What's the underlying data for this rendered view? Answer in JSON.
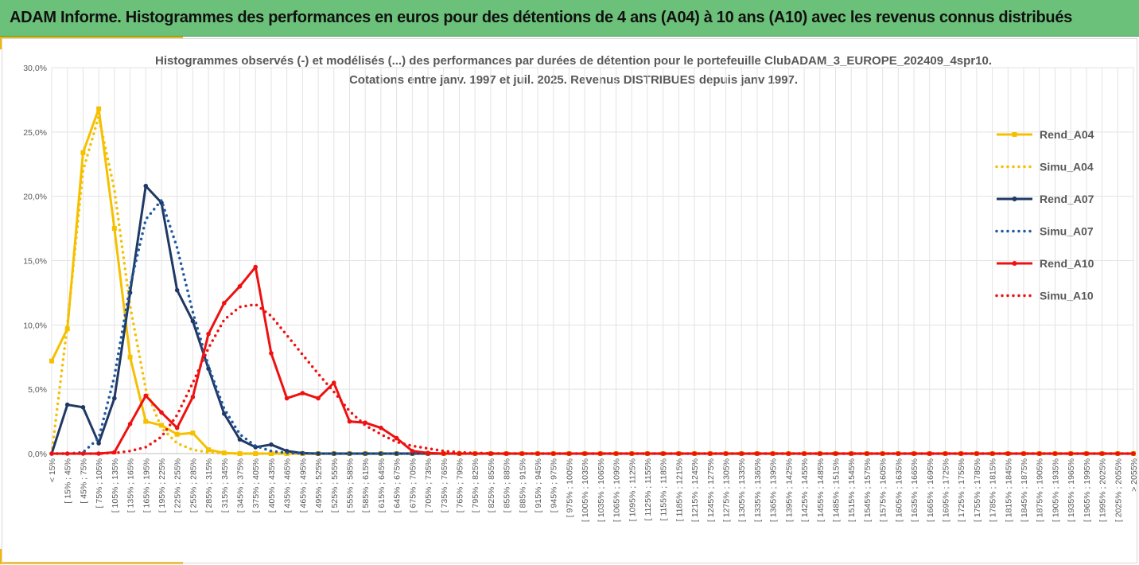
{
  "banner": {
    "title": "ADAM Informe. Histogrammes des performances en euros pour des détentions de 4 ans (A04) à 10 ans (A10) avec les revenus connus distribués"
  },
  "colors": {
    "banner_bg": "#6cc17a",
    "accent": "#f2b705",
    "a04": "#f5c000",
    "a07": "#1f3864",
    "a10": "#ee1111"
  },
  "chart_data": {
    "type": "line",
    "title": "Histogrammes observés (-) et modélisés (...) des performances par durées de détention pour le portefeuille ClubADAM_3_EUROPE_202409_4spr10.",
    "subtitle": "Cotations entre janv. 1997 et juil. 2025. Revenus DISTRIBUES depuis janv 1997.",
    "ylim": [
      0,
      0.3
    ],
    "yticks": [
      "0,0%",
      "5,0%",
      "10,0%",
      "15,0%",
      "20,0%",
      "25,0%",
      "30,0%"
    ],
    "grid": true,
    "legend_position": "right",
    "categories": [
      "< 15%",
      "[ 15% ; 45%",
      "[ 45% ; 75%",
      "[ 75% ; 105%",
      "[ 105% ; 135%",
      "[ 135% ; 165%",
      "[ 165% ; 195%",
      "[ 195% ; 225%",
      "[ 225% ; 255%",
      "[ 255% ; 285%",
      "[ 285% ; 315%",
      "[ 315% ; 345%",
      "[ 345% ; 375%",
      "[ 375% ; 405%",
      "[ 405% ; 435%",
      "[ 435% ; 465%",
      "[ 465% ; 495%",
      "[ 495% ; 525%",
      "[ 525% ; 555%",
      "[ 555% ; 585%",
      "[ 585% ; 615%",
      "[ 615% ; 645%",
      "[ 645% ; 675%",
      "[ 675% ; 705%",
      "[ 705% ; 735%",
      "[ 735% ; 765%",
      "[ 765% ; 795%",
      "[ 795% ; 825%",
      "[ 825% ; 855%",
      "[ 855% ; 885%",
      "[ 885% ; 915%",
      "[ 915% ; 945%",
      "[ 945% ; 975%",
      "[ 975% ; 1005%",
      "[ 1005% ; 1035%",
      "[ 1035% ; 1065%",
      "[ 1065% ; 1095%",
      "[ 1095% ; 1125%",
      "[ 1125% ; 1155%",
      "[ 1155% ; 1185%",
      "[ 1185% ; 1215%",
      "[ 1215% ; 1245%",
      "[ 1245% ; 1275%",
      "[ 1275% ; 1305%",
      "[ 1305% ; 1335%",
      "[ 1335% ; 1365%",
      "[ 1365% ; 1395%",
      "[ 1395% ; 1425%",
      "[ 1425% ; 1455%",
      "[ 1455% ; 1485%",
      "[ 1485% ; 1515%",
      "[ 1515% ; 1545%",
      "[ 1545% ; 1575%",
      "[ 1575% ; 1605%",
      "[ 1605% ; 1635%",
      "[ 1635% ; 1665%",
      "[ 1665% ; 1695%",
      "[ 1695% ; 1725%",
      "[ 1725% ; 1755%",
      "[ 1755% ; 1785%",
      "[ 1785% ; 1815%",
      "[ 1815% ; 1845%",
      "[ 1845% ; 1875%",
      "[ 1875% ; 1905%",
      "[ 1905% ; 1935%",
      "[ 1935% ; 1965%",
      "[ 1965% ; 1995%",
      "[ 1995% ; 2025%",
      "[ 2025% ; 2055%",
      "> 2055%"
    ],
    "series": [
      {
        "name": "Rend_A04",
        "style": "solid",
        "marker": "square",
        "color": "#f5c000",
        "values": [
          0.072,
          0.097,
          0.234,
          0.268,
          0.175,
          0.075,
          0.025,
          0.022,
          0.015,
          0.016,
          0.003,
          0.0005,
          0,
          0,
          0,
          0,
          0,
          0,
          0,
          0,
          0,
          0,
          0,
          0,
          0,
          0,
          0,
          0,
          0,
          0,
          0,
          0,
          0,
          0,
          0,
          0,
          0,
          0,
          0,
          0,
          0,
          0,
          0,
          0,
          0,
          0,
          0,
          0,
          0,
          0,
          0,
          0,
          0,
          0,
          0,
          0,
          0,
          0,
          0,
          0,
          0,
          0,
          0,
          0,
          0,
          0,
          0,
          0,
          0,
          0
        ]
      },
      {
        "name": "Simu_A04",
        "style": "dotted",
        "marker": "none",
        "color": "#f5c000",
        "values": [
          0.0,
          0.1,
          0.22,
          0.262,
          0.205,
          0.115,
          0.05,
          0.02,
          0.008,
          0.003,
          0.001,
          0.0003,
          0,
          0,
          0,
          0,
          0,
          0,
          0,
          0,
          0,
          0,
          0,
          0,
          0,
          0,
          0,
          0,
          0,
          0,
          0,
          0,
          0,
          0,
          0,
          0,
          0,
          0,
          0,
          0,
          0,
          0,
          0,
          0,
          0,
          0,
          0,
          0,
          0,
          0,
          0,
          0,
          0,
          0,
          0,
          0,
          0,
          0,
          0,
          0,
          0,
          0,
          0,
          0,
          0,
          0,
          0,
          0,
          0,
          0
        ]
      },
      {
        "name": "Rend_A07",
        "style": "solid",
        "marker": "circle",
        "color": "#1f3864",
        "values": [
          0.0,
          0.038,
          0.036,
          0.008,
          0.043,
          0.125,
          0.208,
          0.195,
          0.127,
          0.103,
          0.066,
          0.031,
          0.011,
          0.005,
          0.007,
          0.002,
          0.0003,
          0,
          0,
          0,
          0,
          0,
          0,
          0,
          0,
          0,
          0,
          0,
          0,
          0,
          0,
          0,
          0,
          0,
          0,
          0,
          0,
          0,
          0,
          0,
          0,
          0,
          0,
          0,
          0,
          0,
          0,
          0,
          0,
          0,
          0,
          0,
          0,
          0,
          0,
          0,
          0,
          0,
          0,
          0,
          0,
          0,
          0,
          0,
          0,
          0,
          0,
          0,
          0,
          0
        ]
      },
      {
        "name": "Simu_A07",
        "style": "dotted",
        "marker": "none",
        "color": "#1f5aa0",
        "values": [
          0,
          0,
          0.001,
          0.012,
          0.06,
          0.13,
          0.182,
          0.197,
          0.16,
          0.11,
          0.068,
          0.035,
          0.015,
          0.006,
          0.002,
          0.0005,
          0.0001,
          0,
          0,
          0,
          0,
          0,
          0,
          0,
          0,
          0,
          0,
          0,
          0,
          0,
          0,
          0,
          0,
          0,
          0,
          0,
          0,
          0,
          0,
          0,
          0,
          0,
          0,
          0,
          0,
          0,
          0,
          0,
          0,
          0,
          0,
          0,
          0,
          0,
          0,
          0,
          0,
          0,
          0,
          0,
          0,
          0,
          0,
          0,
          0,
          0,
          0,
          0,
          0,
          0
        ]
      },
      {
        "name": "Rend_A10",
        "style": "solid",
        "marker": "circle",
        "color": "#ee1111",
        "values": [
          0,
          0,
          0,
          0,
          0.001,
          0.023,
          0.045,
          0.032,
          0.02,
          0.044,
          0.093,
          0.117,
          0.13,
          0.145,
          0.078,
          0.043,
          0.047,
          0.043,
          0.055,
          0.025,
          0.024,
          0.02,
          0.012,
          0.002,
          0.0005,
          0,
          0,
          0,
          0,
          0,
          0,
          0,
          0,
          0,
          0,
          0,
          0,
          0,
          0,
          0,
          0,
          0,
          0,
          0,
          0,
          0,
          0,
          0,
          0,
          0,
          0,
          0,
          0,
          0,
          0,
          0,
          0,
          0,
          0,
          0,
          0,
          0,
          0,
          0,
          0,
          0,
          0,
          0,
          0,
          0
        ]
      },
      {
        "name": "Simu_A10",
        "style": "dotted",
        "marker": "none",
        "color": "#ee1111",
        "values": [
          0,
          0,
          0,
          0,
          0.0005,
          0.002,
          0.005,
          0.013,
          0.03,
          0.055,
          0.082,
          0.104,
          0.114,
          0.116,
          0.107,
          0.092,
          0.077,
          0.062,
          0.048,
          0.033,
          0.022,
          0.015,
          0.009,
          0.006,
          0.004,
          0.002,
          0.001,
          0.0005,
          0.0002,
          0,
          0,
          0,
          0,
          0,
          0,
          0,
          0,
          0,
          0,
          0,
          0,
          0,
          0,
          0,
          0,
          0,
          0,
          0,
          0,
          0,
          0,
          0,
          0,
          0,
          0,
          0,
          0,
          0,
          0,
          0,
          0,
          0,
          0,
          0,
          0,
          0,
          0,
          0,
          0,
          0
        ]
      }
    ]
  }
}
